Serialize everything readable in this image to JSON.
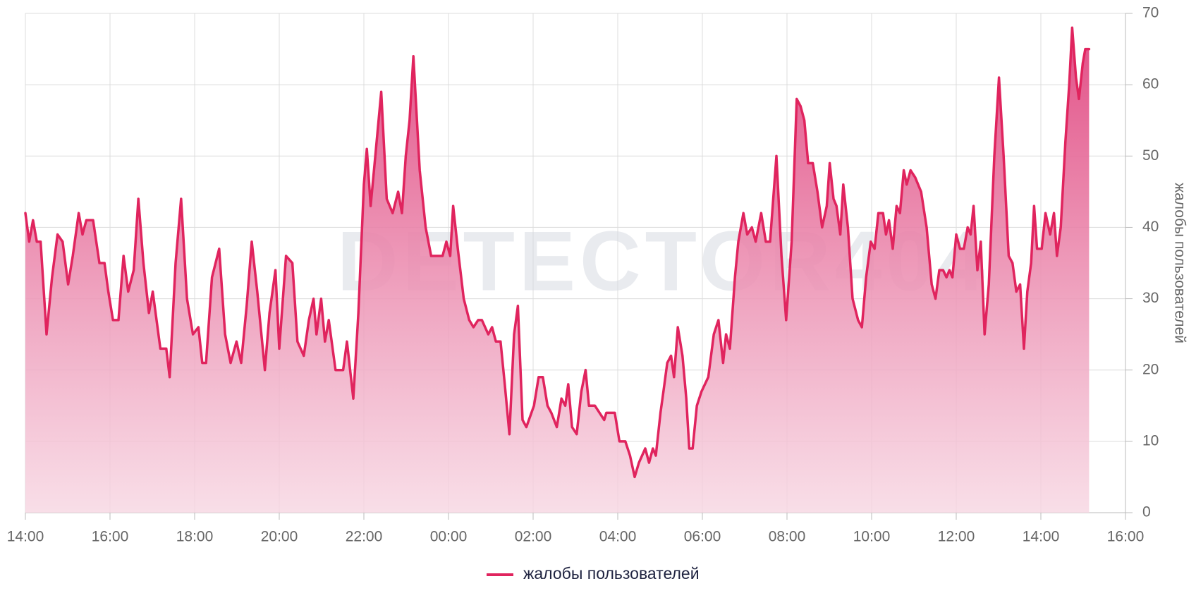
{
  "chart_data": {
    "type": "area",
    "watermark": "DETECTOR404",
    "y_label": "жалобы пользователей",
    "x": [
      0,
      0.09,
      0.18,
      0.27,
      0.36,
      0.5,
      0.63,
      0.76,
      0.88,
      1.01,
      1.12,
      1.26,
      1.35,
      1.44,
      1.6,
      1.75,
      1.87,
      1.96,
      2.07,
      2.2,
      2.32,
      2.43,
      2.56,
      2.67,
      2.79,
      2.92,
      3.01,
      3.19,
      3.33,
      3.41,
      3.55,
      3.68,
      3.82,
      3.96,
      4.09,
      4.18,
      4.27,
      4.41,
      4.58,
      4.72,
      4.85,
      4.99,
      5.1,
      5.23,
      5.35,
      5.48,
      5.66,
      5.77,
      5.91,
      6.0,
      6.16,
      6.31,
      6.43,
      6.58,
      6.7,
      6.81,
      6.88,
      6.99,
      7.08,
      7.17,
      7.33,
      7.51,
      7.6,
      7.75,
      7.87,
      8.0,
      8.07,
      8.16,
      8.27,
      8.41,
      8.54,
      8.68,
      8.81,
      8.9,
      8.99,
      9.08,
      9.17,
      9.32,
      9.46,
      9.59,
      9.86,
      9.95,
      10.04,
      10.11,
      10.22,
      10.36,
      10.49,
      10.59,
      10.7,
      10.79,
      10.94,
      11.03,
      11.12,
      11.23,
      11.33,
      11.44,
      11.55,
      11.64,
      11.75,
      11.84,
      12.02,
      12.13,
      12.23,
      12.34,
      12.43,
      12.56,
      12.67,
      12.76,
      12.83,
      12.92,
      13.03,
      13.14,
      13.24,
      13.32,
      13.46,
      13.57,
      13.68,
      13.73,
      13.93,
      14.04,
      14.18,
      14.29,
      14.4,
      14.5,
      14.65,
      14.74,
      14.83,
      14.9,
      15.01,
      15.08,
      15.17,
      15.26,
      15.33,
      15.42,
      15.53,
      15.62,
      15.69,
      15.77,
      15.87,
      15.98,
      16.14,
      16.27,
      16.38,
      16.49,
      16.56,
      16.65,
      16.77,
      16.85,
      16.97,
      17.06,
      17.17,
      17.26,
      17.39,
      17.5,
      17.6,
      17.75,
      17.87,
      17.98,
      18.11,
      18.23,
      18.32,
      18.41,
      18.5,
      18.61,
      18.72,
      18.83,
      18.94,
      19.01,
      19.1,
      19.17,
      19.26,
      19.33,
      19.44,
      19.55,
      19.68,
      19.77,
      19.87,
      19.98,
      20.07,
      20.16,
      20.27,
      20.34,
      20.41,
      20.5,
      20.59,
      20.67,
      20.76,
      20.83,
      20.92,
      21.03,
      21.17,
      21.3,
      21.42,
      21.51,
      21.6,
      21.69,
      21.77,
      21.84,
      21.91,
      22.0,
      22.09,
      22.18,
      22.27,
      22.34,
      22.41,
      22.5,
      22.58,
      22.67,
      22.77,
      22.9,
      23.01,
      23.12,
      23.24,
      23.33,
      23.42,
      23.51,
      23.6,
      23.68,
      23.77,
      23.84,
      23.91,
      24.02,
      24.11,
      24.22,
      24.31,
      24.38,
      24.47,
      24.58,
      24.67,
      24.74,
      24.83,
      24.9,
      24.99,
      25.05,
      25.14
    ],
    "series": [
      {
        "name": "жалобы пользователей",
        "color": "#e0245e",
        "values": [
          42,
          38,
          41,
          38,
          38,
          25,
          33,
          39,
          38,
          32,
          36,
          42,
          39,
          41,
          41,
          35,
          35,
          31,
          27,
          27,
          36,
          31,
          34,
          44,
          35,
          28,
          31,
          23,
          23,
          19,
          35,
          44,
          30,
          25,
          26,
          21,
          21,
          33,
          37,
          25,
          21,
          24,
          21,
          29,
          38,
          31,
          20,
          28,
          34,
          23,
          36,
          35,
          24,
          22,
          27,
          30,
          25,
          30,
          24,
          27,
          20,
          20,
          24,
          16,
          28,
          46,
          51,
          43,
          50,
          59,
          44,
          42,
          45,
          42,
          50,
          55,
          64,
          48,
          40,
          36,
          36,
          38,
          36,
          43,
          37,
          30,
          27,
          26,
          27,
          27,
          25,
          26,
          24,
          24,
          18,
          11,
          25,
          29,
          13,
          12,
          15,
          19,
          19,
          15,
          14,
          12,
          16,
          15,
          18,
          12,
          11,
          17,
          20,
          15,
          15,
          14,
          13,
          14,
          14,
          10,
          10,
          8,
          5,
          7,
          9,
          7,
          9,
          8,
          14,
          17,
          21,
          22,
          19,
          26,
          22,
          16,
          9,
          9,
          15,
          17,
          19,
          25,
          27,
          21,
          25,
          23,
          33,
          38,
          42,
          39,
          40,
          38,
          42,
          38,
          38,
          50,
          36,
          27,
          38,
          58,
          57,
          55,
          49,
          49,
          45,
          40,
          43,
          49,
          44,
          43,
          39,
          46,
          40,
          30,
          27,
          26,
          33,
          38,
          37,
          42,
          42,
          39,
          41,
          37,
          43,
          42,
          48,
          46,
          48,
          47,
          45,
          40,
          32,
          30,
          34,
          34,
          33,
          34,
          33,
          39,
          37,
          37,
          40,
          39,
          43,
          34,
          38,
          25,
          32,
          50,
          61,
          50,
          36,
          35,
          31,
          32,
          23,
          31,
          35,
          43,
          37,
          37,
          42,
          39,
          42,
          36,
          40,
          52,
          60,
          68,
          61,
          58,
          63,
          65,
          65
        ]
      }
    ],
    "xlim": [
      0,
      26
    ],
    "xticks": [
      {
        "value": 0,
        "label": "14:00"
      },
      {
        "value": 2,
        "label": "16:00"
      },
      {
        "value": 4,
        "label": "18:00"
      },
      {
        "value": 6,
        "label": "20:00"
      },
      {
        "value": 8,
        "label": "22:00"
      },
      {
        "value": 10,
        "label": "00:00"
      },
      {
        "value": 12,
        "label": "02:00"
      },
      {
        "value": 14,
        "label": "04:00"
      },
      {
        "value": 16,
        "label": "06:00"
      },
      {
        "value": 18,
        "label": "08:00"
      },
      {
        "value": 20,
        "label": "10:00"
      },
      {
        "value": 22,
        "label": "12:00"
      },
      {
        "value": 24,
        "label": "14:00"
      },
      {
        "value": 26,
        "label": "16:00"
      }
    ],
    "ylim": [
      0,
      70
    ],
    "yticks": [
      0,
      10,
      20,
      30,
      40,
      50,
      60,
      70
    ],
    "grid": true,
    "y_axis_side": "right",
    "legend": "bottom"
  }
}
